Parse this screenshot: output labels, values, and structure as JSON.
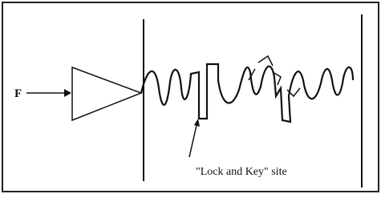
{
  "diagram": {
    "input_label": "F",
    "site_label": "\"Lock and Key\" site"
  }
}
